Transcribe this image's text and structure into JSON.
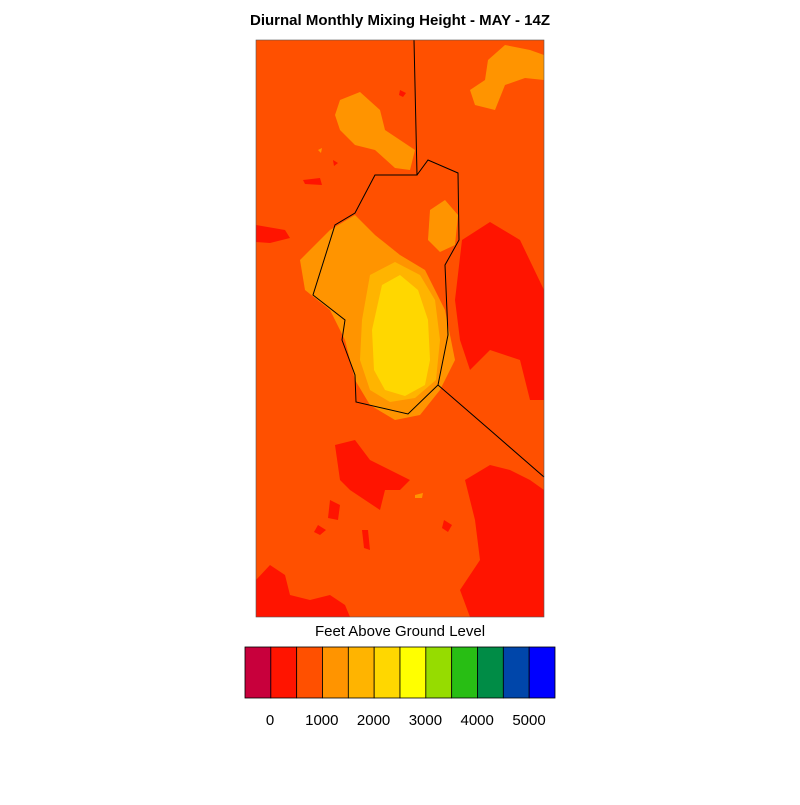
{
  "title": "Diurnal Monthly Mixing Height - MAY - 14Z",
  "colorbar": {
    "label": "Feet Above Ground Level",
    "colors": [
      "#c8003c",
      "#ff1400",
      "#ff5000",
      "#ff9400",
      "#ffb400",
      "#ffd700",
      "#ffff00",
      "#96dc00",
      "#28be14",
      "#008c46",
      "#0046aa",
      "#0000ff"
    ],
    "ticks": [
      0,
      1000,
      2000,
      3000,
      4000,
      5000
    ]
  }
}
